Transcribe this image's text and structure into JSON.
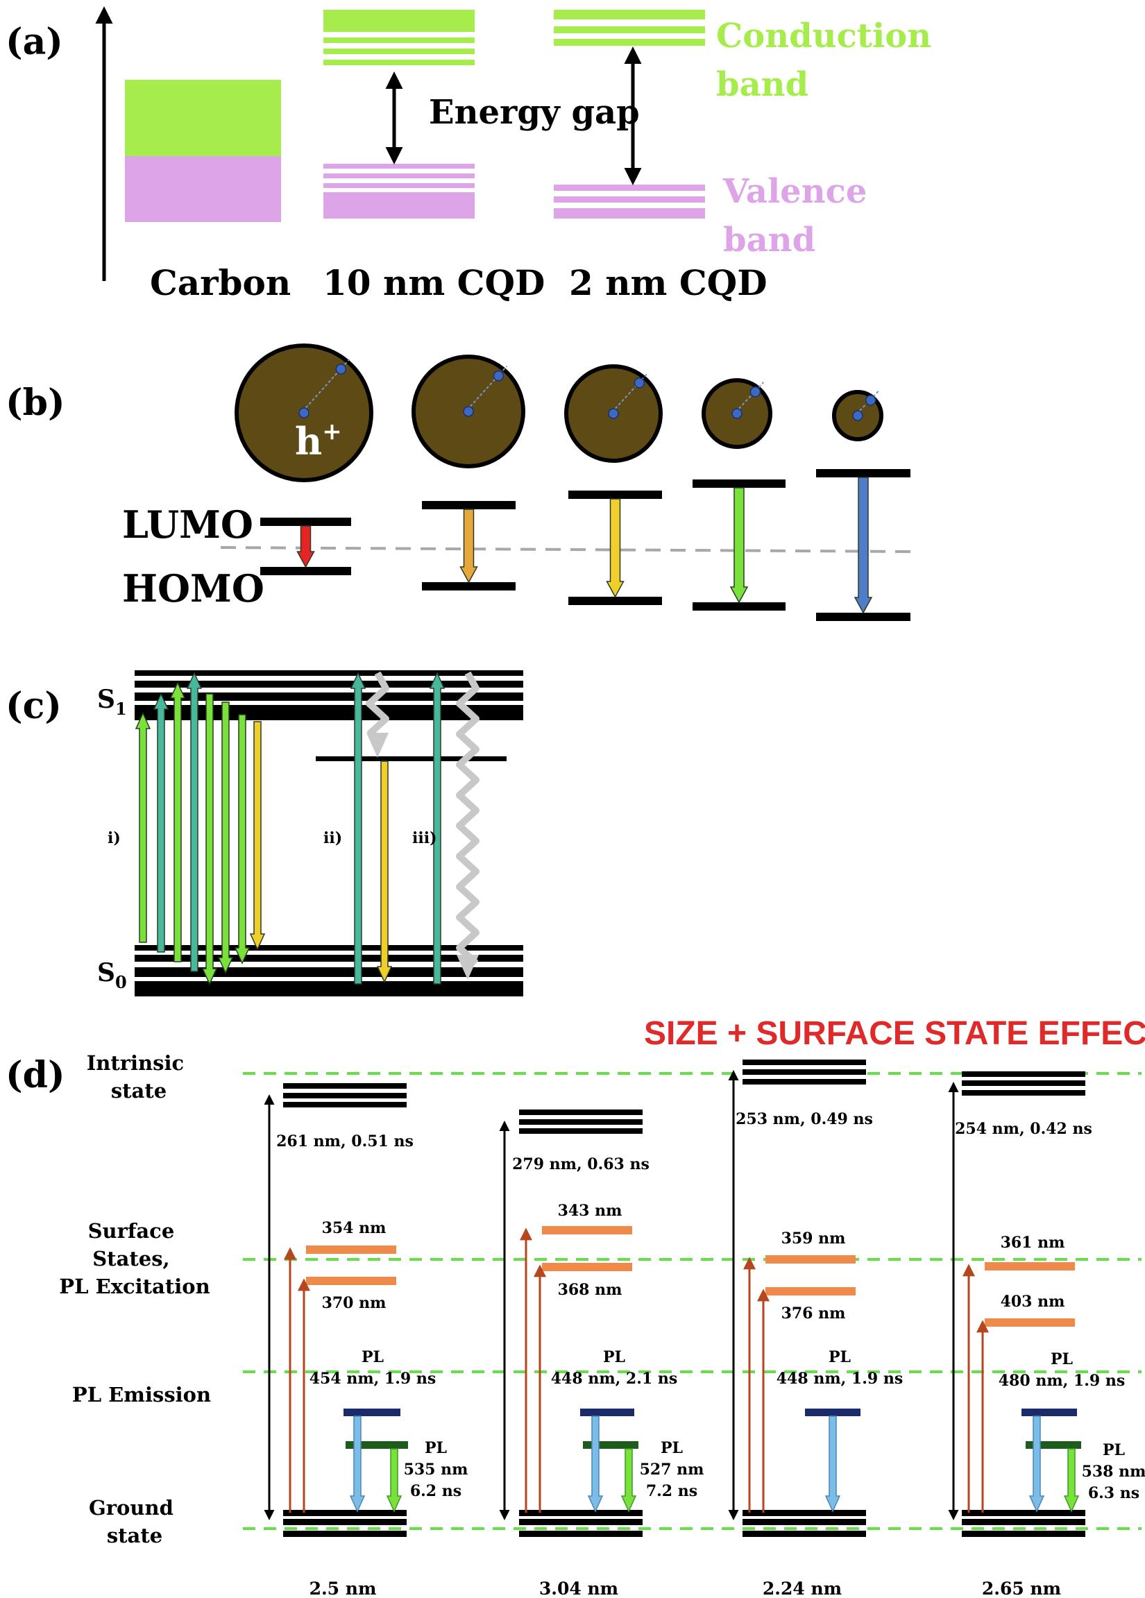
{
  "colors": {
    "conduction": "#a6ec4c",
    "valence": "#dea4e8",
    "green": "#7ae03a",
    "teal": "#49b89a",
    "yellow": "#f0cf2b",
    "red": "#e62424",
    "orange_arrow": "#e6a83a",
    "blue": "#4f7dc8",
    "gray": "#c8c8c8",
    "black": "#000000",
    "orange_bar": "#f08a4b",
    "brown": "#b5461e",
    "navy": "#1a2a6a",
    "dkgreen": "#1d5c1d",
    "light_blue": "#7cbde8",
    "dash_green": "#66e04a",
    "title_red": "#e02a2a",
    "particle": "#5e4a14"
  },
  "panel_a": {
    "label": "(a)",
    "conduction_label": [
      "Conduction",
      "band"
    ],
    "valence_label": [
      "Valence",
      "band"
    ],
    "gap_label": "Energy gap",
    "x_labels": [
      "Carbon",
      "10 nm CQD",
      "2 nm CQD"
    ]
  },
  "panel_b": {
    "label": "(b)",
    "lumo_label": "LUMO",
    "homo_label": "HOMO",
    "hole_label": "h",
    "hole_sup": "+"
  },
  "panel_c": {
    "label": "(c)",
    "s1_main": "S",
    "s1_sub": "1",
    "s0_main": "S",
    "s0_sub": "0",
    "process_labels": [
      "i)",
      "ii)",
      "iii)"
    ]
  },
  "panel_d": {
    "label": "(d)",
    "title": "SIZE + SURFACE STATE EFFECT",
    "row_labels": {
      "intrinsic": [
        "Intrinsic",
        "state"
      ],
      "surface": [
        "Surface",
        "States,",
        "PL Excitation"
      ],
      "emission": [
        "PL Emission"
      ],
      "ground": [
        "Ground",
        "state"
      ]
    },
    "columns": [
      {
        "size": "2.5 nm",
        "intrinsic": "261 nm, 0.51 ns",
        "exc_upper": "354 nm",
        "exc_lower": "370 nm",
        "pl_blue": [
          "PL",
          "454 nm, 1.9 ns"
        ],
        "pl_green": [
          "PL",
          "535 nm",
          "6.2 ns"
        ]
      },
      {
        "size": "3.04 nm",
        "intrinsic": "279 nm, 0.63 ns",
        "exc_upper": "343 nm",
        "exc_lower": "368 nm",
        "pl_blue": [
          "PL",
          "448 nm, 2.1 ns"
        ],
        "pl_green": [
          "PL",
          "527 nm",
          "7.2 ns"
        ]
      },
      {
        "size": "2.24 nm",
        "intrinsic": "253 nm, 0.49 ns",
        "exc_upper": "359 nm",
        "exc_lower": "376 nm",
        "pl_blue": [
          "PL",
          "448 nm, 1.9 ns"
        ],
        "pl_green": []
      },
      {
        "size": "2.65 nm",
        "intrinsic": "254 nm, 0.42 ns",
        "exc_upper": "361 nm",
        "exc_lower": "403 nm",
        "pl_blue": [
          "PL",
          "480 nm, 1.9 ns"
        ],
        "pl_green": [
          "PL",
          "538 nm",
          "6.3 ns"
        ]
      }
    ]
  }
}
